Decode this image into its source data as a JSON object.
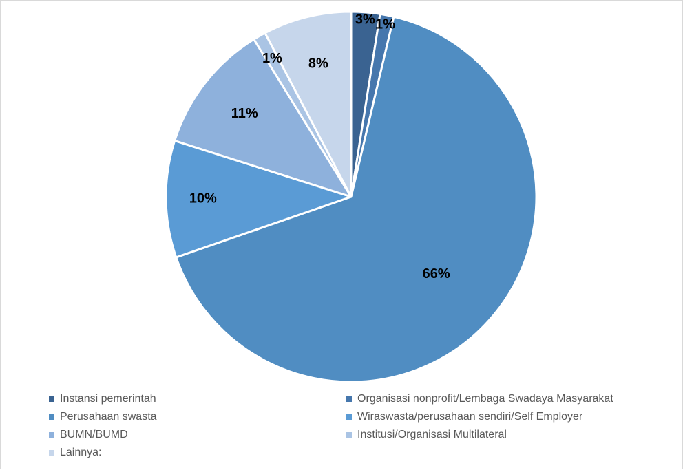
{
  "chart_data": {
    "type": "pie",
    "title": "",
    "start_angle_deg": 0,
    "direction": "clockwise",
    "slices": [
      {
        "label": "Instansi pemerintah",
        "value": 2.5,
        "data_label": "3%",
        "color": "#3a6391"
      },
      {
        "label": "Organisasi nonprofit/Lembaga Swadaya Masyarakat",
        "value": 1.2,
        "data_label": "1%",
        "color": "#4677ad"
      },
      {
        "label": "Perusahaan swasta",
        "value": 66.0,
        "data_label": "66%",
        "color": "#508dc2"
      },
      {
        "label": "Wiraswasta/perusahaan sendiri/Self Employer",
        "value": 10.2,
        "data_label": "10%",
        "color": "#5a9bd5"
      },
      {
        "label": "BUMN/BUMD",
        "value": 11.3,
        "data_label": "11%",
        "color": "#8eb1dc"
      },
      {
        "label": "Institusi/Organisasi Multilateral",
        "value": 1.1,
        "data_label": "1%",
        "color": "#aac4e4"
      },
      {
        "label": "Lainnya:",
        "value": 7.7,
        "data_label": "8%",
        "color": "#c6d6eb"
      }
    ],
    "legend_position": "bottom"
  }
}
